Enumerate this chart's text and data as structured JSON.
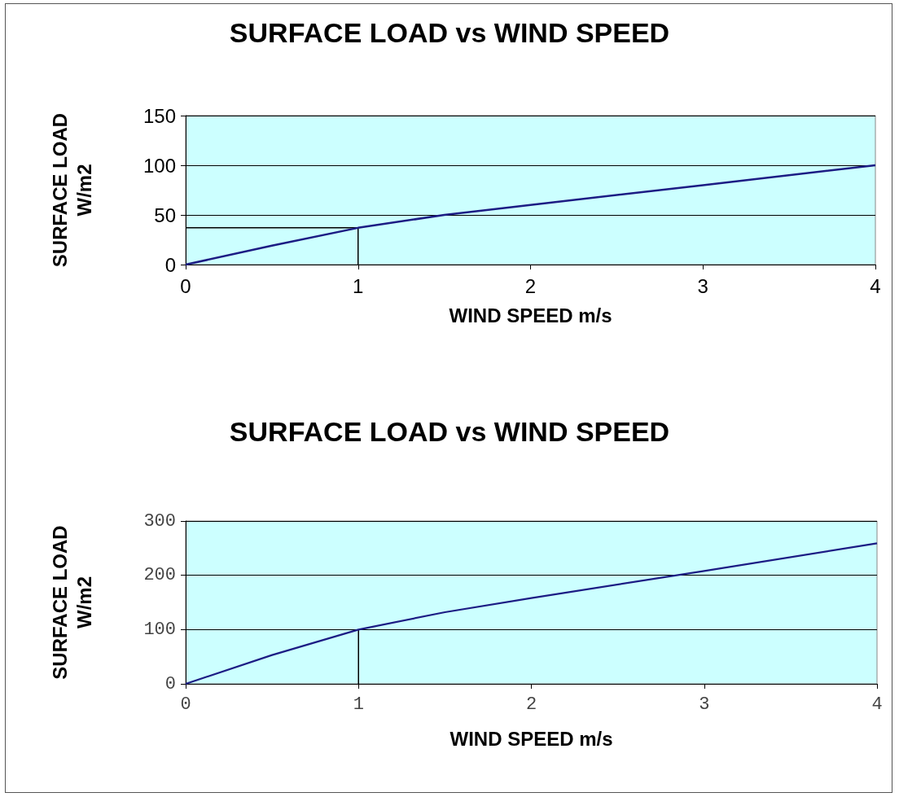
{
  "chart_data": [
    {
      "type": "line",
      "title": "SURFACE LOAD vs WIND SPEED",
      "xlabel": "WIND SPEED m/s",
      "ylabel": "SURFACE LOAD\nW/m2",
      "xlim": [
        0,
        4
      ],
      "xticks": [
        0,
        1,
        2,
        3,
        4
      ],
      "ylim": [
        0,
        150
      ],
      "yticks": [
        0,
        50,
        100,
        150
      ],
      "grid": "y",
      "marker": "none",
      "line_style": "solid",
      "series": [
        {
          "color": "#1c1c84",
          "x": [
            0,
            0.5,
            1,
            1.5,
            2,
            3,
            4
          ],
          "values": [
            0,
            19,
            37,
            50,
            60,
            80,
            100
          ]
        },
        {
          "color": "#000000",
          "x": [
            0,
            1,
            1
          ],
          "values": [
            37,
            37,
            0
          ]
        }
      ]
    },
    {
      "type": "line",
      "title": "SURFACE LOAD vs WIND SPEED",
      "xlabel": "WIND SPEED m/s",
      "ylabel": "SURFACE LOAD\nW/m2",
      "xlim": [
        0,
        4
      ],
      "xticks": [
        0,
        1,
        2,
        3,
        4
      ],
      "ylim": [
        0,
        300
      ],
      "yticks": [
        0,
        100,
        200,
        300
      ],
      "grid": "y",
      "marker": "none",
      "line_style": "solid",
      "series": [
        {
          "color": "#1c1c84",
          "x": [
            0,
            0.5,
            1,
            1.5,
            2,
            3,
            4
          ],
          "values": [
            0,
            53,
            100,
            132,
            158,
            208,
            259
          ]
        },
        {
          "color": "#000000",
          "x": [
            1,
            1
          ],
          "values": [
            100,
            0
          ]
        }
      ]
    }
  ]
}
